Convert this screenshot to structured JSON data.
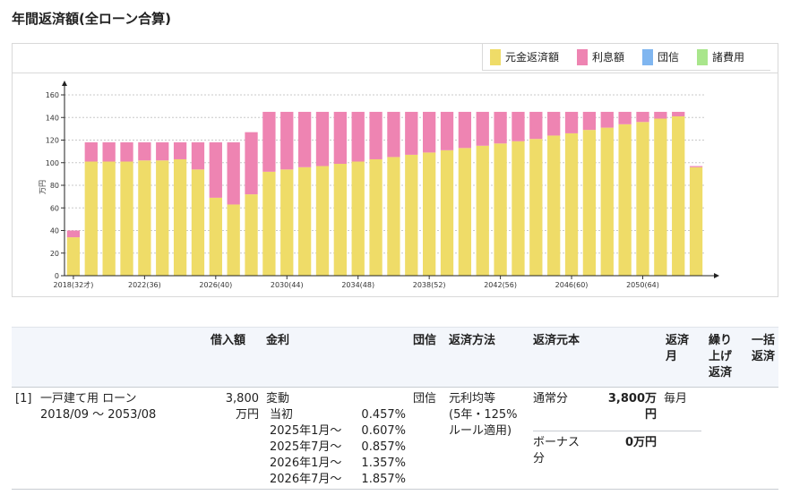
{
  "page": {
    "title": "年間返済額(全ローン合算)"
  },
  "legend": [
    {
      "label": "元金返済額",
      "color": "#efdc68"
    },
    {
      "label": "利息額",
      "color": "#ee84b2"
    },
    {
      "label": "団信",
      "color": "#80b6f0"
    },
    {
      "label": "諸費用",
      "color": "#a9e68c"
    }
  ],
  "chart_data": {
    "type": "bar",
    "stacked": true,
    "ylabel": "万円",
    "ylim": [
      0,
      160
    ],
    "yticks": [
      0,
      20,
      40,
      60,
      80,
      100,
      120,
      140,
      160
    ],
    "grid": true,
    "legend_position": "top-right",
    "x_tick_labels": [
      {
        "index": 0,
        "label": "2018(32才)"
      },
      {
        "index": 4,
        "label": "2022(36)"
      },
      {
        "index": 8,
        "label": "2026(40)"
      },
      {
        "index": 12,
        "label": "2030(44)"
      },
      {
        "index": 16,
        "label": "2034(48)"
      },
      {
        "index": 20,
        "label": "2038(52)"
      },
      {
        "index": 24,
        "label": "2042(56)"
      },
      {
        "index": 28,
        "label": "2046(60)"
      },
      {
        "index": 32,
        "label": "2050(64)"
      }
    ],
    "categories": [
      "2018",
      "2019",
      "2020",
      "2021",
      "2022",
      "2023",
      "2024",
      "2025",
      "2026",
      "2027",
      "2028",
      "2029",
      "2030",
      "2031",
      "2032",
      "2033",
      "2034",
      "2035",
      "2036",
      "2037",
      "2038",
      "2039",
      "2040",
      "2041",
      "2042",
      "2043",
      "2044",
      "2045",
      "2046",
      "2047",
      "2048",
      "2049",
      "2050",
      "2051",
      "2052",
      "2053"
    ],
    "series": [
      {
        "name": "元金返済額",
        "color": "#efdc68",
        "values": [
          34,
          101,
          101,
          101,
          102,
          102,
          103,
          94,
          69,
          63,
          72,
          92,
          94,
          96,
          97,
          99,
          101,
          103,
          105,
          107,
          109,
          111,
          113,
          115,
          117,
          119,
          121,
          124,
          126,
          129,
          131,
          134,
          136,
          139,
          141,
          96
        ]
      },
      {
        "name": "利息額",
        "color": "#ee84b2",
        "values": [
          6,
          17,
          17,
          17,
          16,
          16,
          15,
          24,
          49,
          55,
          55,
          53,
          51,
          49,
          48,
          46,
          44,
          42,
          40,
          38,
          36,
          34,
          32,
          30,
          28,
          26,
          24,
          21,
          19,
          16,
          14,
          11,
          9,
          6,
          4,
          1
        ]
      },
      {
        "name": "団信",
        "color": "#80b6f0",
        "values": [
          0,
          0,
          0,
          0,
          0,
          0,
          0,
          0,
          0,
          0,
          0,
          0,
          0,
          0,
          0,
          0,
          0,
          0,
          0,
          0,
          0,
          0,
          0,
          0,
          0,
          0,
          0,
          0,
          0,
          0,
          0,
          0,
          0,
          0,
          0,
          0
        ]
      },
      {
        "name": "諸費用",
        "color": "#a9e68c",
        "values": [
          0,
          0,
          0,
          0,
          0,
          0,
          0,
          0,
          0,
          0,
          0,
          0,
          0,
          0,
          0,
          0,
          0,
          0,
          0,
          0,
          0,
          0,
          0,
          0,
          0,
          0,
          0,
          0,
          0,
          0,
          0,
          0,
          0,
          0,
          0,
          0
        ]
      }
    ]
  },
  "table": {
    "headers": {
      "borrow": "借入額",
      "rate": "金利",
      "insurance": "団信",
      "method": "返済方法",
      "principal": "返済元本",
      "month_l1": "返済",
      "month_l2": "月",
      "prepay_l1": "繰り",
      "prepay_l2": "上げ",
      "prepay_l3": "返済",
      "lump_l1": "一括",
      "lump_l2": "返済"
    },
    "row": {
      "index": "[1]",
      "name": "一戸建て用 ローン",
      "period": "2018/09 ～ 2053/08",
      "amount_l1": "3,800",
      "amount_l2": "万円",
      "rate_type": "変動",
      "rates": [
        {
          "label": "当初",
          "value": "0.457%"
        },
        {
          "label": "2025年1月～",
          "value": "0.607%"
        },
        {
          "label": "2025年7月～",
          "value": "0.857%"
        },
        {
          "label": "2026年1月～",
          "value": "1.357%"
        },
        {
          "label": "2026年7月～",
          "value": "1.857%"
        }
      ],
      "insurance": "団信",
      "method_l1": "元利均等",
      "method_l2": "(5年・125%",
      "method_l3": "ルール適用)",
      "normal_label": "通常分",
      "normal_value_l1": "3,800万",
      "normal_value_l2": "円",
      "normal_month": "毎月",
      "bonus_label_l1": "ボーナス",
      "bonus_label_l2": "分",
      "bonus_value": "0万円"
    }
  }
}
